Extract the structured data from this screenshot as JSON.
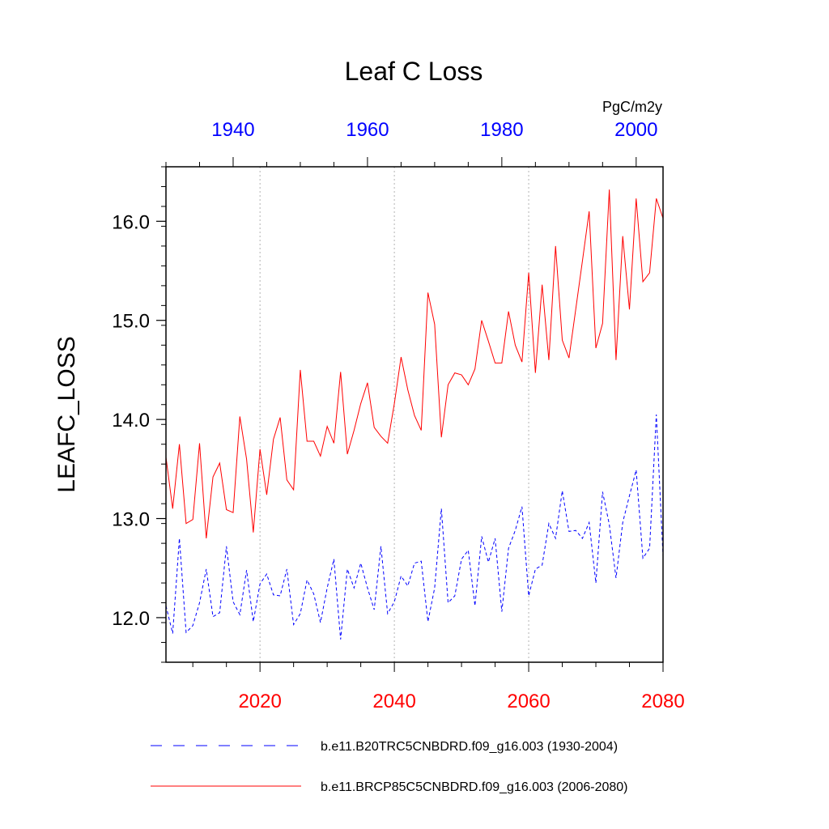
{
  "chart_data": {
    "type": "line",
    "title": "Leaf C Loss",
    "ylabel": "LEAFC_LOSS",
    "units": "PgC/m2y",
    "ylim": [
      11.55,
      16.55
    ],
    "yticks": [
      12.0,
      13.0,
      14.0,
      15.0,
      16.0
    ],
    "ytick_labels": [
      "12.0",
      "13.0",
      "14.0",
      "15.0",
      "16.0"
    ],
    "y_minor_step": 0.2,
    "bottom_axis": {
      "color": "#ff0000",
      "range": [
        2006,
        2080
      ],
      "ticks": [
        2020,
        2040,
        2060,
        2080
      ],
      "tick_labels": [
        "2020",
        "2040",
        "2060",
        "2080"
      ],
      "minor_step": 5
    },
    "top_axis": {
      "color": "#0000ff",
      "range": [
        1930,
        2004
      ],
      "ticks": [
        1940,
        1960,
        1980,
        2000
      ],
      "tick_labels": [
        "1940",
        "1960",
        "1980",
        "2000"
      ],
      "minor_step": 5
    },
    "grid_x": [
      2020,
      2040,
      2060
    ],
    "series": [
      {
        "name": "b.e11.B20TRC5CNBDRD.f09_g16.003 (1930-2004)",
        "color": "#0000ff",
        "style": "dashed",
        "x_start": 1930,
        "values": [
          12.12,
          11.84,
          12.8,
          11.85,
          11.92,
          12.15,
          12.49,
          12.01,
          12.05,
          12.72,
          12.16,
          12.03,
          12.48,
          11.96,
          12.34,
          12.44,
          12.23,
          12.22,
          12.49,
          11.93,
          12.04,
          12.38,
          12.24,
          11.95,
          12.3,
          12.59,
          11.78,
          12.49,
          12.3,
          12.55,
          12.3,
          12.08,
          12.72,
          12.04,
          12.16,
          12.42,
          12.32,
          12.55,
          12.57,
          11.96,
          12.3,
          13.1,
          12.15,
          12.22,
          12.59,
          12.68,
          12.12,
          12.82,
          12.56,
          12.8,
          12.06,
          12.7,
          12.88,
          13.12,
          12.22,
          12.49,
          12.53,
          12.95,
          12.8,
          13.28,
          12.87,
          12.88,
          12.8,
          12.96,
          12.35,
          13.27,
          12.94,
          12.4,
          12.96,
          13.23,
          13.49,
          12.6,
          12.7,
          14.05,
          12.62
        ]
      },
      {
        "name": "b.e11.BRCP85C5CNBDRD.f09_g16.003 (2006-2080)",
        "color": "#ff0000",
        "style": "solid",
        "x_start": 2006,
        "values": [
          13.62,
          13.1,
          13.75,
          12.95,
          12.99,
          13.76,
          12.8,
          13.42,
          13.56,
          13.09,
          13.06,
          14.03,
          13.6,
          12.86,
          13.7,
          13.24,
          13.8,
          14.02,
          13.39,
          13.29,
          14.5,
          13.78,
          13.78,
          13.63,
          13.93,
          13.76,
          14.48,
          13.65,
          13.89,
          14.16,
          14.37,
          13.92,
          13.83,
          13.76,
          14.16,
          14.63,
          14.3,
          14.04,
          13.89,
          15.28,
          14.96,
          13.82,
          14.35,
          14.47,
          14.45,
          14.35,
          14.51,
          15.0,
          14.79,
          14.57,
          14.57,
          15.09,
          14.75,
          14.58,
          15.48,
          14.47,
          15.36,
          14.6,
          15.75,
          14.8,
          14.62,
          15.11,
          15.6,
          16.1,
          14.72,
          14.97,
          16.32,
          14.6,
          15.85,
          15.11,
          16.23,
          15.39,
          15.48,
          16.23,
          16.03
        ]
      }
    ]
  }
}
